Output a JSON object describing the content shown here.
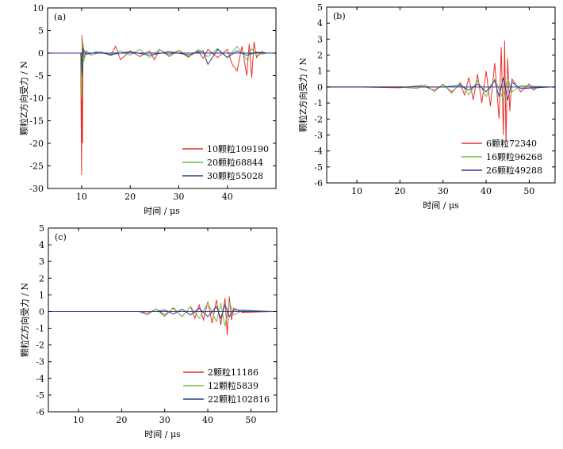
{
  "chart_data": [
    {
      "id": "a",
      "type": "line",
      "panel_label": "(a)",
      "xlabel": "时间 / μs",
      "ylabel": "颗粒Z方向受力 / N",
      "xlim": [
        3,
        50
      ],
      "ylim": [
        -30,
        10
      ],
      "xticks": [
        10,
        20,
        30,
        40
      ],
      "yticks": [
        10,
        5,
        0,
        -5,
        -10,
        -15,
        -20,
        -25,
        -30
      ],
      "legend_position": "bottom-right",
      "series": [
        {
          "name": "10颗粒109190",
          "color": "#e8302a",
          "x": [
            3,
            9.8,
            10.0,
            10.1,
            10.2,
            10.3,
            10.5,
            11,
            12,
            14,
            16,
            17,
            18,
            20,
            22,
            24,
            25,
            26,
            28,
            30,
            32,
            34,
            35,
            36,
            38,
            40,
            41,
            42,
            43,
            44,
            44.5,
            45,
            45.5,
            46,
            47,
            48
          ],
          "y": [
            0,
            0,
            -27,
            4,
            -20,
            2,
            -1,
            0.5,
            -0.5,
            0.3,
            -0.5,
            1.5,
            -1.5,
            0.5,
            -0.8,
            0.5,
            -1.5,
            0.8,
            -0.5,
            0.6,
            -0.8,
            0.5,
            -1.2,
            0.8,
            -1,
            0.8,
            -2.5,
            -4,
            1.5,
            -5,
            2,
            -5.5,
            2.5,
            -1,
            0.3,
            0
          ]
        },
        {
          "name": "20颗粒68844",
          "color": "#6cbf44",
          "x": [
            3,
            9.8,
            10.0,
            10.2,
            10.4,
            11,
            12,
            14,
            16,
            18,
            20,
            22,
            24,
            26,
            28,
            30,
            32,
            34,
            36,
            38,
            40,
            42,
            44,
            45,
            46,
            48
          ],
          "y": [
            0,
            0,
            -10,
            3,
            -2,
            0.5,
            -0.5,
            0.3,
            -0.6,
            0.5,
            -0.5,
            0.8,
            -1,
            0.8,
            -0.8,
            0.5,
            -1,
            0.8,
            -0.8,
            1,
            -1,
            1.5,
            -1.5,
            1,
            -0.5,
            0
          ]
        },
        {
          "name": "30颗粒55028",
          "color": "#2e3a8f",
          "x": [
            3,
            9.9,
            10.1,
            10.3,
            11,
            13,
            16,
            20,
            24,
            28,
            32,
            35,
            36,
            38,
            40,
            42,
            44,
            46,
            48
          ],
          "y": [
            0,
            0,
            -5,
            1,
            -0.3,
            0.2,
            -0.3,
            0.3,
            -0.5,
            0.3,
            -0.4,
            0.5,
            -2.5,
            0.8,
            -1,
            0.5,
            -0.5,
            0.2,
            0
          ]
        }
      ]
    },
    {
      "id": "b",
      "type": "line",
      "panel_label": "(b)",
      "xlabel": "时间 / μs",
      "ylabel": "颗粒Z方向受力 / N",
      "xlim": [
        3,
        56
      ],
      "ylim": [
        -6,
        5
      ],
      "xticks": [
        10,
        20,
        30,
        40,
        50
      ],
      "yticks": [
        5,
        4,
        3,
        2,
        1,
        0,
        -1,
        -2,
        -3,
        -4,
        -5,
        -6
      ],
      "legend_position": "bottom-right",
      "series": [
        {
          "name": "6颗粒72340",
          "color": "#e8302a",
          "x": [
            3,
            10,
            20,
            25,
            28,
            30,
            32,
            34,
            35,
            36,
            37,
            38,
            39,
            40,
            41,
            42,
            43,
            43.5,
            44,
            44.3,
            44.6,
            45,
            45.5,
            46,
            48,
            50,
            51,
            52,
            55
          ],
          "y": [
            0,
            0,
            -0.05,
            0.1,
            -0.2,
            0.15,
            -0.3,
            0.2,
            -0.5,
            0.6,
            -0.8,
            0.8,
            -1,
            1,
            -1.2,
            1.5,
            -2,
            2.5,
            -3,
            2.9,
            -3.5,
            1.8,
            -1.5,
            0.5,
            -0.3,
            0.2,
            -0.2,
            0,
            0
          ]
        },
        {
          "name": "16颗粒96268",
          "color": "#6cbf44",
          "x": [
            3,
            20,
            24,
            26,
            28,
            30,
            32,
            34,
            36,
            38,
            40,
            42,
            44,
            45,
            46,
            48,
            55
          ],
          "y": [
            0,
            0,
            -0.1,
            0.15,
            -0.3,
            0.2,
            -0.4,
            0.3,
            -0.5,
            0.4,
            -0.6,
            0.5,
            -0.8,
            0.6,
            -0.3,
            0.1,
            0
          ]
        },
        {
          "name": "26颗粒49288",
          "color": "#2e3a8f",
          "x": [
            3,
            30,
            34,
            36,
            38,
            40,
            42,
            43,
            44,
            45,
            46,
            48,
            55
          ],
          "y": [
            0,
            0,
            0.1,
            -0.2,
            0.2,
            -0.3,
            0.4,
            -0.6,
            0.6,
            -0.8,
            0.3,
            -0.1,
            0
          ]
        }
      ]
    },
    {
      "id": "c",
      "type": "line",
      "panel_label": "(c)",
      "xlabel": "时间 / μs",
      "ylabel": "颗粒Z方向受力 / N",
      "xlim": [
        3,
        56
      ],
      "ylim": [
        -6,
        5
      ],
      "xticks": [
        10,
        20,
        30,
        40,
        50
      ],
      "yticks": [
        5,
        4,
        3,
        2,
        1,
        0,
        -1,
        -2,
        -3,
        -4,
        -5,
        -6
      ],
      "legend_position": "bottom-right",
      "series": [
        {
          "name": "2颗粒11186",
          "color": "#e8302a",
          "x": [
            3,
            24,
            26,
            28,
            30,
            32,
            34,
            36,
            37,
            38,
            39,
            40,
            41,
            42,
            43,
            44,
            44.5,
            45,
            45.5,
            46,
            48,
            55
          ],
          "y": [
            0,
            0,
            -0.1,
            0.15,
            -0.2,
            0.2,
            -0.3,
            0.3,
            -0.4,
            0.4,
            -0.5,
            0.6,
            -0.7,
            0.7,
            -0.8,
            0.8,
            -1.4,
            0.9,
            -0.5,
            0.2,
            -0.05,
            0
          ]
        },
        {
          "name": "12颗粒5839",
          "color": "#6cbf44",
          "x": [
            3,
            24,
            26,
            28,
            30,
            32,
            34,
            36,
            38,
            40,
            42,
            43,
            44,
            45,
            46,
            48,
            55
          ],
          "y": [
            0,
            0,
            -0.2,
            0.15,
            -0.3,
            0.25,
            -0.3,
            0.3,
            -0.4,
            0.5,
            -0.6,
            0.5,
            -0.9,
            0.6,
            -0.2,
            0.05,
            0
          ]
        },
        {
          "name": "22颗粒102816",
          "color": "#2e3a8f",
          "x": [
            3,
            28,
            30,
            32,
            34,
            36,
            38,
            40,
            42,
            43,
            44,
            45,
            46,
            55
          ],
          "y": [
            0,
            0,
            0.1,
            -0.15,
            0.15,
            -0.2,
            0.2,
            -0.3,
            0.3,
            -0.4,
            0.4,
            -0.3,
            0.1,
            0
          ]
        }
      ]
    }
  ]
}
